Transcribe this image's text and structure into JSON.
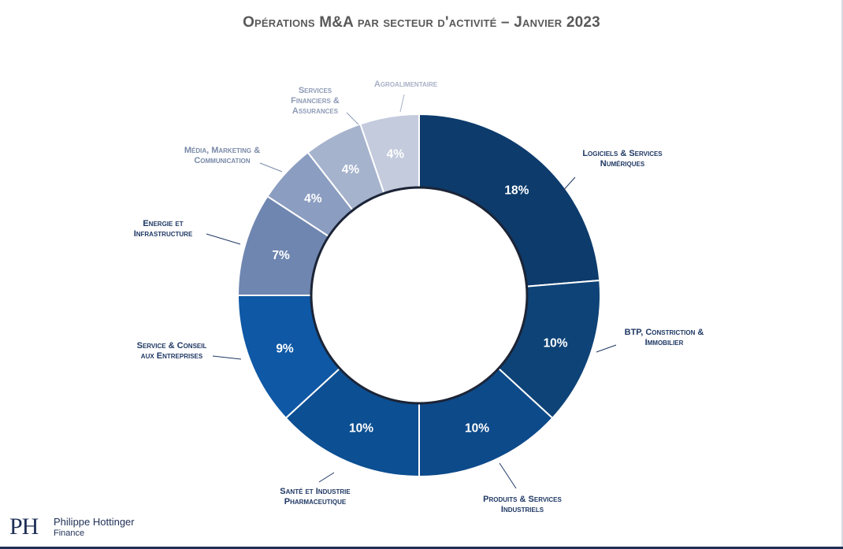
{
  "title": "Opérations M&A par secteur d'activité – Janvier 2023",
  "logo": {
    "mark": "PH",
    "name": "Philippe Hottinger",
    "sub": "Finance"
  },
  "chart_data": {
    "type": "pie",
    "donut": true,
    "title": "Opérations M&A par secteur d'activité – Janvier 2023",
    "segments": [
      {
        "label": [
          "Logiciels & Services",
          "Numériques"
        ],
        "value": 18,
        "value_label": "18%",
        "color": "#0c3b6c",
        "label_color": "#1f3864"
      },
      {
        "label": [
          "BTP, Constriction &",
          "Immobilier"
        ],
        "value": 10,
        "value_label": "10%",
        "color": "#0e4377",
        "label_color": "#1f3864"
      },
      {
        "label": [
          "Produits & Services",
          "Industriels"
        ],
        "value": 10,
        "value_label": "10%",
        "color": "#0d4a8a",
        "label_color": "#1f3864"
      },
      {
        "label": [
          "Santé et Industrie",
          "Pharmaceutique"
        ],
        "value": 10,
        "value_label": "10%",
        "color": "#0c4f92",
        "label_color": "#1f3864"
      },
      {
        "label": [
          "Service & Conseil",
          "aux Entreprises"
        ],
        "value": 9,
        "value_label": "9%",
        "color": "#0e58a5",
        "label_color": "#1f3864"
      },
      {
        "label": [
          "Energie et",
          "Infrastructure"
        ],
        "value": 7,
        "value_label": "7%",
        "color": "#6f86b0",
        "label_color": "#1f3864"
      },
      {
        "label": [
          "Média, Marketing &",
          "Communication"
        ],
        "value": 4,
        "value_label": "4%",
        "color": "#8b9dc0",
        "label_color": "#7a8aa8"
      },
      {
        "label": [
          "Services",
          "Financiers &",
          "Assurances"
        ],
        "value": 4,
        "value_label": "4%",
        "color": "#a6b3cd",
        "label_color": "#8e9bb6"
      },
      {
        "label": [
          "Agroalimentaire"
        ],
        "value": 4,
        "value_label": "4%",
        "color": "#c4cbdd",
        "label_color": "#a7b0c6"
      }
    ]
  }
}
